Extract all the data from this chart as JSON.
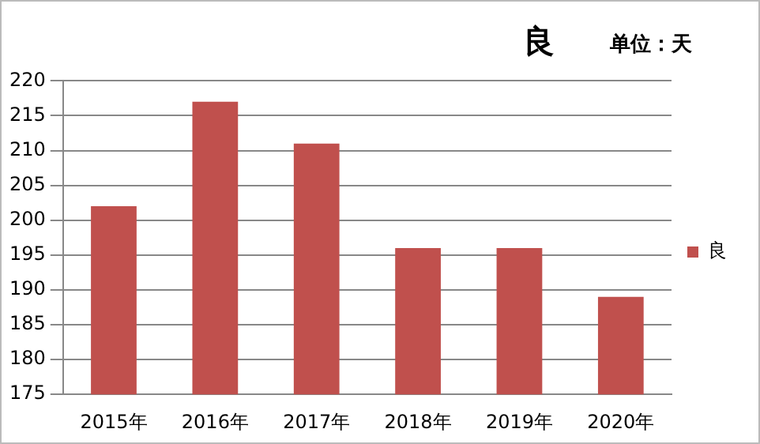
{
  "chart_data": {
    "type": "bar",
    "title": "良",
    "annotations": [
      "单位：天"
    ],
    "categories": [
      "2015年",
      "2016年",
      "2017年",
      "2018年",
      "2019年",
      "2020年"
    ],
    "series": [
      {
        "name": "良",
        "color": "#c0504d",
        "values": [
          202,
          217,
          211,
          196,
          196,
          189
        ]
      }
    ],
    "ylim": [
      175,
      220
    ],
    "yticks": [
      175,
      180,
      185,
      190,
      195,
      200,
      205,
      210,
      215,
      220
    ],
    "grid": "y",
    "legend": "right"
  }
}
